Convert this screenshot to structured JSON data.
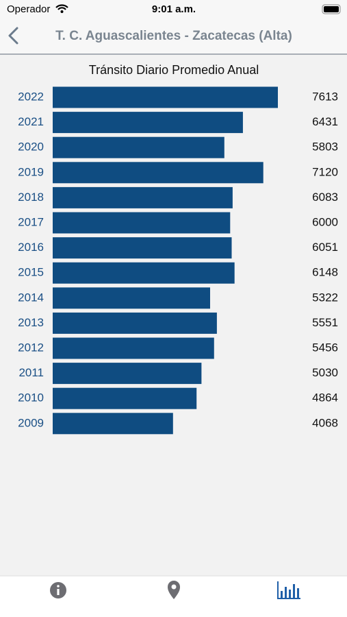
{
  "status_bar": {
    "carrier": "Operador",
    "time": "9:01 a.m."
  },
  "nav": {
    "title": "T. C. Aguascalientes - Zacatecas (Alta)"
  },
  "chart_data": {
    "type": "bar",
    "orientation": "horizontal",
    "title": "Tránsito Diario Promedio Anual",
    "categories": [
      "2022",
      "2021",
      "2020",
      "2019",
      "2018",
      "2017",
      "2016",
      "2015",
      "2014",
      "2013",
      "2012",
      "2011",
      "2010",
      "2009"
    ],
    "values": [
      7613,
      6431,
      5803,
      7120,
      6083,
      6000,
      6051,
      6148,
      5322,
      5551,
      5456,
      5030,
      4864,
      4068
    ],
    "color": "#0f4c81"
  }
}
